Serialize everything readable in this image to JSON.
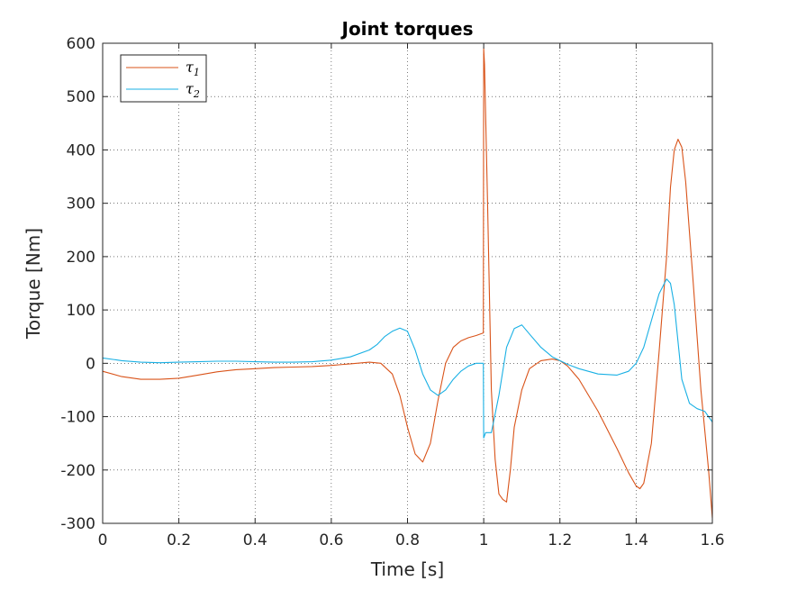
{
  "chart_data": {
    "type": "line",
    "title": "Joint torques",
    "xlabel": "Time [s]",
    "ylabel": "Torque [Nm]",
    "xlim": [
      0,
      1.6
    ],
    "ylim": [
      -300,
      600
    ],
    "xticks": [
      "0",
      "0.2",
      "0.4",
      "0.6",
      "0.8",
      "1",
      "1.2",
      "1.4",
      "1.6"
    ],
    "yticks": [
      "-300",
      "-200",
      "-100",
      "0",
      "100",
      "200",
      "300",
      "400",
      "500",
      "600"
    ],
    "grid": true,
    "legend_position": "top-left",
    "series": [
      {
        "name": "τ1",
        "symbol": "τ",
        "subscript": "1",
        "color": "#D95319",
        "x": [
          0,
          0.05,
          0.1,
          0.15,
          0.2,
          0.25,
          0.3,
          0.35,
          0.4,
          0.45,
          0.5,
          0.55,
          0.6,
          0.65,
          0.7,
          0.73,
          0.76,
          0.78,
          0.8,
          0.82,
          0.84,
          0.86,
          0.88,
          0.9,
          0.92,
          0.94,
          0.96,
          0.98,
          0.999,
          1.0,
          1.002,
          1.01,
          1.02,
          1.03,
          1.04,
          1.05,
          1.06,
          1.07,
          1.08,
          1.1,
          1.12,
          1.15,
          1.18,
          1.2,
          1.22,
          1.25,
          1.3,
          1.35,
          1.38,
          1.4,
          1.41,
          1.42,
          1.44,
          1.46,
          1.48,
          1.49,
          1.5,
          1.51,
          1.52,
          1.53,
          1.55,
          1.57,
          1.59,
          1.6
        ],
        "y": [
          -15,
          -25,
          -30,
          -30,
          -28,
          -22,
          -16,
          -12,
          -10,
          -8,
          -7,
          -6,
          -4,
          -1,
          2,
          0,
          -20,
          -60,
          -120,
          -170,
          -185,
          -150,
          -70,
          0,
          30,
          42,
          48,
          52,
          57,
          590,
          560,
          300,
          -50,
          -180,
          -245,
          -255,
          -260,
          -200,
          -120,
          -50,
          -10,
          5,
          8,
          5,
          -5,
          -30,
          -90,
          -160,
          -205,
          -230,
          -235,
          -225,
          -150,
          20,
          200,
          330,
          400,
          420,
          405,
          340,
          150,
          -50,
          -200,
          -290
        ]
      },
      {
        "name": "τ2",
        "symbol": "τ",
        "subscript": "2",
        "color": "#19B0E4",
        "x": [
          0,
          0.05,
          0.1,
          0.15,
          0.2,
          0.25,
          0.3,
          0.35,
          0.4,
          0.45,
          0.5,
          0.55,
          0.6,
          0.65,
          0.7,
          0.72,
          0.74,
          0.76,
          0.78,
          0.8,
          0.82,
          0.84,
          0.86,
          0.88,
          0.9,
          0.92,
          0.94,
          0.96,
          0.98,
          0.999,
          1.0,
          1.005,
          1.02,
          1.04,
          1.06,
          1.08,
          1.1,
          1.12,
          1.15,
          1.18,
          1.2,
          1.22,
          1.25,
          1.3,
          1.35,
          1.38,
          1.4,
          1.42,
          1.44,
          1.46,
          1.48,
          1.49,
          1.5,
          1.51,
          1.52,
          1.54,
          1.56,
          1.58,
          1.6
        ],
        "y": [
          10,
          5,
          2,
          1,
          2,
          3,
          4,
          4,
          3,
          2,
          2,
          3,
          6,
          12,
          25,
          35,
          50,
          60,
          66,
          60,
          25,
          -20,
          -50,
          -60,
          -50,
          -30,
          -15,
          -5,
          0,
          0,
          -140,
          -130,
          -130,
          -60,
          30,
          65,
          72,
          55,
          30,
          12,
          5,
          -2,
          -10,
          -20,
          -22,
          -15,
          0,
          30,
          80,
          130,
          158,
          150,
          110,
          40,
          -30,
          -75,
          -85,
          -90,
          -110
        ]
      }
    ]
  }
}
